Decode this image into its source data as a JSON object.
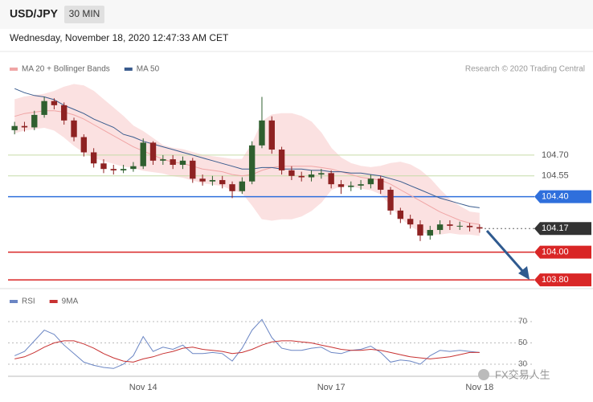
{
  "header": {
    "symbol": "USD/JPY",
    "timeframe": "30 MIN",
    "timestamp": "Wednesday, November 18, 2020 12:47:33 AM CET",
    "credit": "Research © 2020 Trading Central"
  },
  "watermark": "FX交易人生",
  "chart_data": [
    {
      "type": "candlestick",
      "open": [
        104.88,
        104.91,
        104.9,
        104.99,
        105.09,
        105.06,
        104.95,
        104.83,
        104.72,
        104.64,
        104.6,
        104.59,
        104.6,
        104.62,
        104.79,
        104.66,
        104.67,
        104.63,
        104.66,
        104.53,
        104.51,
        104.52,
        104.49,
        104.44,
        104.51,
        104.77,
        104.95,
        104.74,
        104.59,
        104.55,
        104.54,
        104.56,
        104.57,
        104.49,
        104.47,
        104.48,
        104.49,
        104.53,
        104.45,
        104.3,
        104.24,
        104.2,
        104.12,
        104.16,
        104.2,
        104.19,
        104.19,
        104.18
      ],
      "high": [
        104.94,
        104.94,
        105.02,
        105.12,
        105.11,
        105.08,
        104.97,
        104.85,
        104.75,
        104.67,
        104.63,
        104.63,
        104.65,
        104.82,
        104.8,
        104.7,
        104.7,
        104.69,
        104.68,
        104.56,
        104.55,
        104.55,
        104.51,
        104.54,
        104.8,
        105.12,
        104.98,
        104.76,
        104.62,
        104.58,
        104.59,
        104.6,
        104.59,
        104.52,
        104.51,
        104.52,
        104.56,
        104.55,
        104.47,
        104.32,
        104.27,
        104.23,
        104.19,
        104.23,
        104.23,
        104.22,
        104.21,
        104.2
      ],
      "low": [
        104.85,
        104.87,
        104.88,
        104.97,
        105.03,
        104.92,
        104.8,
        104.69,
        104.61,
        104.57,
        104.56,
        104.57,
        104.58,
        104.6,
        104.63,
        104.63,
        104.6,
        104.6,
        104.5,
        104.48,
        104.48,
        104.46,
        104.39,
        104.42,
        104.49,
        104.75,
        104.71,
        104.56,
        104.52,
        104.51,
        104.51,
        104.53,
        104.46,
        104.42,
        104.44,
        104.45,
        104.46,
        104.42,
        104.27,
        104.21,
        104.17,
        104.08,
        104.09,
        104.13,
        104.16,
        104.16,
        104.15,
        104.14
      ],
      "close": [
        104.91,
        104.9,
        104.99,
        105.09,
        105.06,
        104.95,
        104.83,
        104.72,
        104.64,
        104.6,
        104.59,
        104.6,
        104.62,
        104.79,
        104.66,
        104.67,
        104.63,
        104.66,
        104.53,
        104.51,
        104.52,
        104.49,
        104.44,
        104.51,
        104.77,
        104.95,
        104.74,
        104.59,
        104.55,
        104.54,
        104.56,
        104.57,
        104.49,
        104.47,
        104.48,
        104.49,
        104.53,
        104.45,
        104.3,
        104.24,
        104.2,
        104.12,
        104.16,
        104.2,
        104.19,
        104.19,
        104.18,
        104.17
      ],
      "up_color": "#2f5f2f",
      "down_color": "#8e2222",
      "series": [
        {
          "name": "MA 20 + Bollinger Bands",
          "color": "#f0a5a5",
          "band_color": "#fbe1e1",
          "values": [
            104.98,
            105.0,
            105.01,
            105.02,
            105.02,
            105.01,
            104.99,
            104.96,
            104.92,
            104.88,
            104.84,
            104.8,
            104.76,
            104.73,
            104.7,
            104.67,
            104.65,
            104.64,
            104.62,
            104.6,
            104.59,
            104.58,
            104.56,
            104.55,
            104.56,
            104.59,
            104.61,
            104.62,
            104.62,
            104.62,
            104.62,
            104.61,
            104.6,
            104.58,
            104.56,
            104.54,
            104.53,
            104.52,
            104.49,
            104.45,
            104.41,
            104.37,
            104.33,
            104.29,
            104.26,
            104.23,
            104.21,
            104.2
          ],
          "upper": [
            105.1,
            105.12,
            105.13,
            105.14,
            105.16,
            105.19,
            105.21,
            105.2,
            105.16,
            105.1,
            105.04,
            104.98,
            104.91,
            104.87,
            104.82,
            104.77,
            104.75,
            104.74,
            104.72,
            104.7,
            104.69,
            104.68,
            104.67,
            104.67,
            104.78,
            104.94,
            104.99,
            105.0,
            105.0,
            104.98,
            104.94,
            104.86,
            104.75,
            104.68,
            104.64,
            104.62,
            104.61,
            104.62,
            104.64,
            104.65,
            104.63,
            104.59,
            104.53,
            104.45,
            104.38,
            104.33,
            104.29,
            104.28
          ],
          "lower": [
            104.86,
            104.88,
            104.89,
            104.9,
            104.88,
            104.83,
            104.77,
            104.72,
            104.68,
            104.66,
            104.64,
            104.62,
            104.61,
            104.59,
            104.58,
            104.57,
            104.55,
            104.54,
            104.52,
            104.5,
            104.49,
            104.48,
            104.45,
            104.43,
            104.34,
            104.24,
            104.23,
            104.24,
            104.24,
            104.26,
            104.3,
            104.36,
            104.45,
            104.48,
            104.48,
            104.46,
            104.45,
            104.42,
            104.34,
            104.25,
            104.19,
            104.15,
            104.13,
            104.13,
            104.14,
            104.13,
            104.13,
            104.12
          ]
        },
        {
          "name": "MA 50",
          "color": "#3a5c8e",
          "values": [
            105.18,
            105.15,
            105.13,
            105.12,
            105.1,
            105.06,
            105.03,
            105.0,
            104.96,
            104.93,
            104.9,
            104.85,
            104.83,
            104.8,
            104.78,
            104.76,
            104.74,
            104.72,
            104.7,
            104.68,
            104.66,
            104.64,
            104.62,
            104.6,
            104.6,
            104.61,
            104.61,
            104.6,
            104.6,
            104.6,
            104.59,
            104.59,
            104.58,
            104.58,
            104.57,
            104.57,
            104.56,
            104.55,
            104.53,
            104.51,
            104.48,
            104.45,
            104.42,
            104.39,
            104.37,
            104.35,
            104.33,
            104.32
          ]
        }
      ],
      "ylim": [
        103.76,
        105.21
      ],
      "levels": [
        {
          "value": 104.7,
          "label": "104.70",
          "color": "#c6dba8",
          "style": "solid",
          "box": false
        },
        {
          "value": 104.55,
          "label": "104.55",
          "color": "#c6dba8",
          "style": "solid",
          "box": false
        },
        {
          "value": 104.4,
          "label": "104.40",
          "color": "#2f6fdc",
          "style": "solid",
          "box": true
        },
        {
          "value": 104.17,
          "label": "104.17",
          "color": "#333333",
          "style": "dotted",
          "box": true
        },
        {
          "value": 104.0,
          "label": "104.00",
          "color": "#d92626",
          "style": "solid",
          "box": true
        },
        {
          "value": 103.8,
          "label": "103.80",
          "color": "#d92626",
          "style": "solid",
          "box": true
        }
      ]
    },
    {
      "type": "line",
      "categories": [
        null,
        null,
        null,
        null,
        null,
        null,
        null,
        null,
        null,
        null,
        null,
        null,
        null,
        "Nov 14",
        null,
        null,
        null,
        null,
        null,
        null,
        null,
        null,
        null,
        null,
        null,
        null,
        null,
        null,
        null,
        null,
        null,
        null,
        "Nov 17",
        null,
        null,
        null,
        null,
        null,
        null,
        null,
        null,
        null,
        null,
        null,
        null,
        null,
        null,
        "Nov 18"
      ],
      "series": [
        {
          "name": "RSI",
          "color": "#6b86c4",
          "values": [
            38,
            42,
            52,
            62,
            58,
            48,
            40,
            32,
            29,
            27,
            26,
            30,
            38,
            56,
            42,
            46,
            44,
            48,
            40,
            40,
            41,
            40,
            33,
            45,
            62,
            72,
            55,
            45,
            43,
            43,
            45,
            46,
            41,
            40,
            43,
            44,
            47,
            41,
            32,
            34,
            33,
            30,
            38,
            43,
            42,
            43,
            42,
            41
          ]
        },
        {
          "name": "9MA",
          "color": "#c83232",
          "values": [
            35,
            37,
            41,
            46,
            50,
            52,
            52,
            49,
            45,
            40,
            36,
            33,
            32,
            35,
            37,
            40,
            42,
            45,
            46,
            44,
            43,
            42,
            40,
            41,
            44,
            48,
            51,
            52,
            52,
            51,
            50,
            48,
            46,
            44,
            43,
            43,
            44,
            43,
            41,
            39,
            37,
            36,
            35,
            36,
            37,
            39,
            41,
            41
          ]
        }
      ],
      "ylim": [
        17.2,
        96.4
      ],
      "yticks": [
        70,
        50,
        30
      ],
      "grid": true
    }
  ]
}
